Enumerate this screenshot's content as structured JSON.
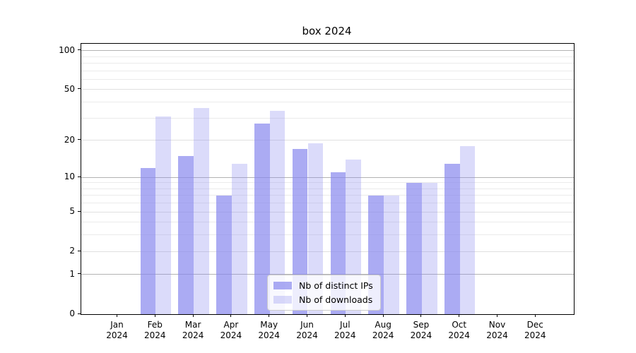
{
  "title": "box 2024",
  "chart_data": {
    "type": "bar",
    "title": "box 2024",
    "scale": "log1p",
    "grid": true,
    "legend_position": "lower center",
    "categories": [
      {
        "month": "Jan",
        "year": "2024"
      },
      {
        "month": "Feb",
        "year": "2024"
      },
      {
        "month": "Mar",
        "year": "2024"
      },
      {
        "month": "Apr",
        "year": "2024"
      },
      {
        "month": "May",
        "year": "2024"
      },
      {
        "month": "Jun",
        "year": "2024"
      },
      {
        "month": "Jul",
        "year": "2024"
      },
      {
        "month": "Aug",
        "year": "2024"
      },
      {
        "month": "Sep",
        "year": "2024"
      },
      {
        "month": "Oct",
        "year": "2024"
      },
      {
        "month": "Nov",
        "year": "2024"
      },
      {
        "month": "Dec",
        "year": "2024"
      }
    ],
    "series": [
      {
        "name": "Nb of distinct IPs",
        "color": "rgba(136,136,238,0.7)",
        "values": [
          0,
          12,
          15,
          7,
          27,
          17,
          11,
          7,
          9,
          13,
          0,
          0
        ]
      },
      {
        "name": "Nb of downloads",
        "color": "rgba(136,136,238,0.3)",
        "values": [
          0,
          31,
          36,
          13,
          34,
          19,
          14,
          7,
          9,
          18,
          0,
          0
        ]
      }
    ],
    "xlabel": "",
    "ylabel": "",
    "ylim": [
      0,
      112.8
    ],
    "y_ticks": [
      0,
      1,
      2,
      5,
      10,
      20,
      50,
      100
    ],
    "y_minor_gridlines": [
      3,
      4,
      6,
      7,
      8,
      9,
      30,
      40,
      60,
      70,
      80,
      90
    ],
    "grid_colors": {
      "emphasis_values": [
        1,
        10,
        100
      ],
      "emphasis": "#b3b3b3",
      "major": "#e0e0e0",
      "minor": "#ebebeb"
    }
  }
}
